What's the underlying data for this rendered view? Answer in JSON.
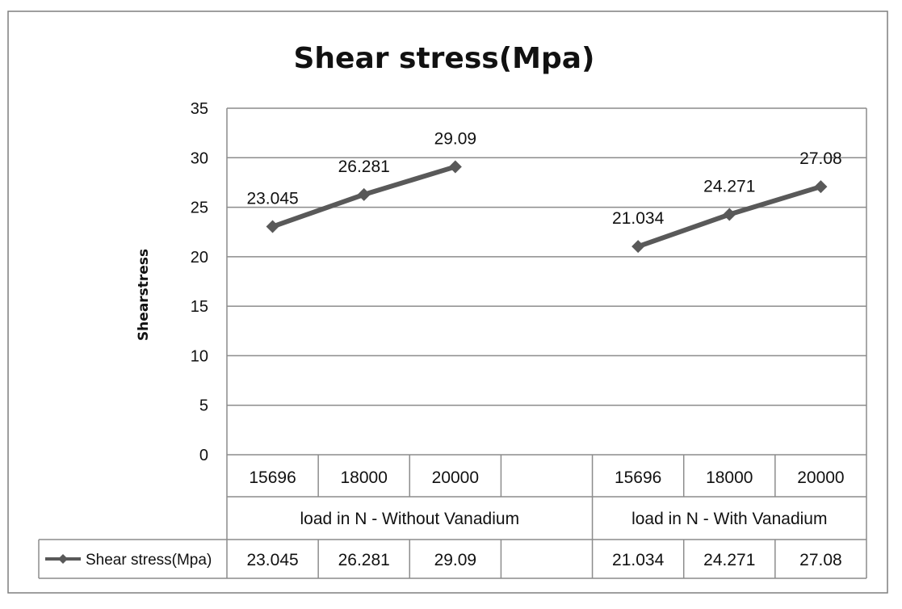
{
  "chart_data": {
    "type": "line",
    "title": "Shear stress(Mpa)",
    "ylabel": "Shearstress",
    "xlabel": "",
    "ylim": [
      0,
      35
    ],
    "yticks": [
      0,
      5,
      10,
      15,
      20,
      25,
      30,
      35
    ],
    "grid": true,
    "groups": [
      {
        "label": "load in N - Without Vanadium",
        "categories": [
          "15696",
          "18000",
          "20000",
          ""
        ]
      },
      {
        "label": "load in N - With Vanadium",
        "categories": [
          "15696",
          "18000",
          "20000"
        ]
      }
    ],
    "series": [
      {
        "name": "Shear stress(Mpa)",
        "color": "#595959",
        "segments": [
          {
            "category_indices": [
              0,
              1,
              2
            ],
            "values": [
              23.045,
              26.281,
              29.09
            ],
            "labels": [
              "23.045",
              "26.281",
              "29.09"
            ]
          },
          {
            "category_indices": [
              4,
              5,
              6
            ],
            "values": [
              21.034,
              24.271,
              27.08
            ],
            "labels": [
              "21.034",
              "24.271",
              "27.08"
            ]
          }
        ]
      }
    ],
    "legend": "data-table-left",
    "table_values": [
      "23.045",
      "26.281",
      "29.09",
      "",
      "21.034",
      "24.271",
      "27.08"
    ]
  }
}
